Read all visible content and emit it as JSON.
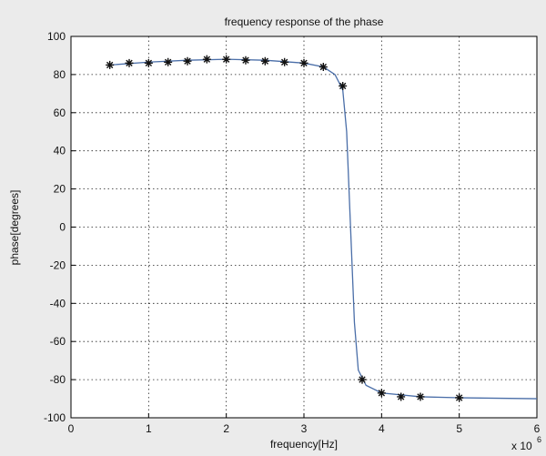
{
  "chart_data": {
    "type": "line",
    "title": "frequency response of the phase",
    "x_label": "frequency[Hz]",
    "y_label": "phase[degrees]",
    "x_scale": {
      "base": "x 10",
      "exponent": "6"
    },
    "xlim": [
      0,
      6
    ],
    "ylim": [
      -100,
      100
    ],
    "xticks": [
      0,
      1,
      2,
      3,
      4,
      5,
      6
    ],
    "yticks": [
      -100,
      -80,
      -60,
      -40,
      -20,
      0,
      20,
      40,
      60,
      80,
      100
    ],
    "grid": true,
    "series": [
      {
        "color": "#4a6ea8",
        "marker": "none",
        "x": [
          0.5,
          1,
          1.5,
          2,
          2.5,
          3,
          3.25,
          3.4,
          3.5,
          3.55,
          3.6,
          3.65,
          3.7,
          3.8,
          4,
          4.5,
          5,
          6
        ],
        "values": [
          85,
          86.5,
          87.5,
          88,
          87.5,
          86,
          84,
          80,
          72,
          50,
          0,
          -50,
          -75,
          -83,
          -87,
          -89,
          -89.5,
          -90
        ]
      },
      {
        "color": "#111111",
        "marker": "*",
        "line": false,
        "x": [
          0.5,
          0.75,
          1.0,
          1.25,
          1.5,
          1.75,
          2.0,
          2.25,
          2.5,
          2.75,
          3.0,
          3.25,
          3.5,
          3.75,
          4.0,
          4.25,
          4.5,
          5.0
        ],
        "values": [
          85,
          86,
          86,
          86.5,
          87,
          88,
          88,
          87.5,
          87,
          86.5,
          86,
          84,
          74,
          -80,
          -87,
          -89,
          -89,
          -89.5
        ]
      }
    ]
  }
}
